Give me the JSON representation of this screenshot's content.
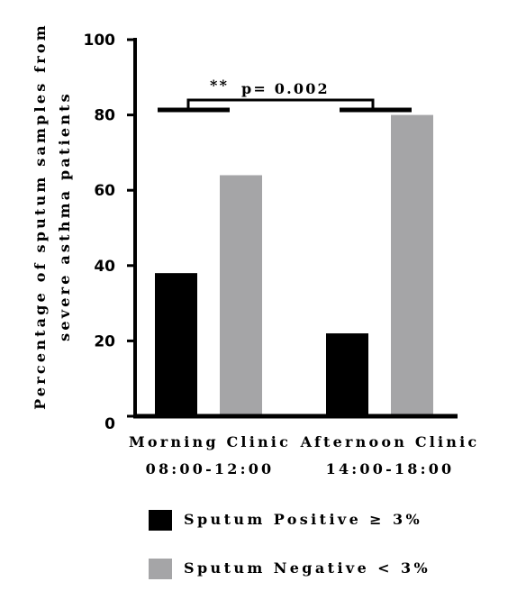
{
  "chart_data": {
    "type": "bar",
    "categories": [
      [
        "Morning Clinic",
        "08:00-12:00"
      ],
      [
        "Afternoon Clinic",
        "14:00-18:00"
      ]
    ],
    "series": [
      {
        "name": "Sputum Positive ≥ 3%",
        "color": "#000000",
        "values": [
          38,
          22
        ]
      },
      {
        "name": "Sputum Negative < 3%",
        "color": "#a5a5a7",
        "values": [
          64,
          80
        ]
      }
    ],
    "ylabel": [
      "Percentage of sputum samples from",
      "severe asthma patients"
    ],
    "ylim": [
      0,
      100
    ],
    "yticks": [
      0,
      20,
      40,
      60,
      80,
      100
    ],
    "annotation": {
      "stars": "**",
      "text": "p= 0.002"
    },
    "legend_position": "bottom"
  }
}
